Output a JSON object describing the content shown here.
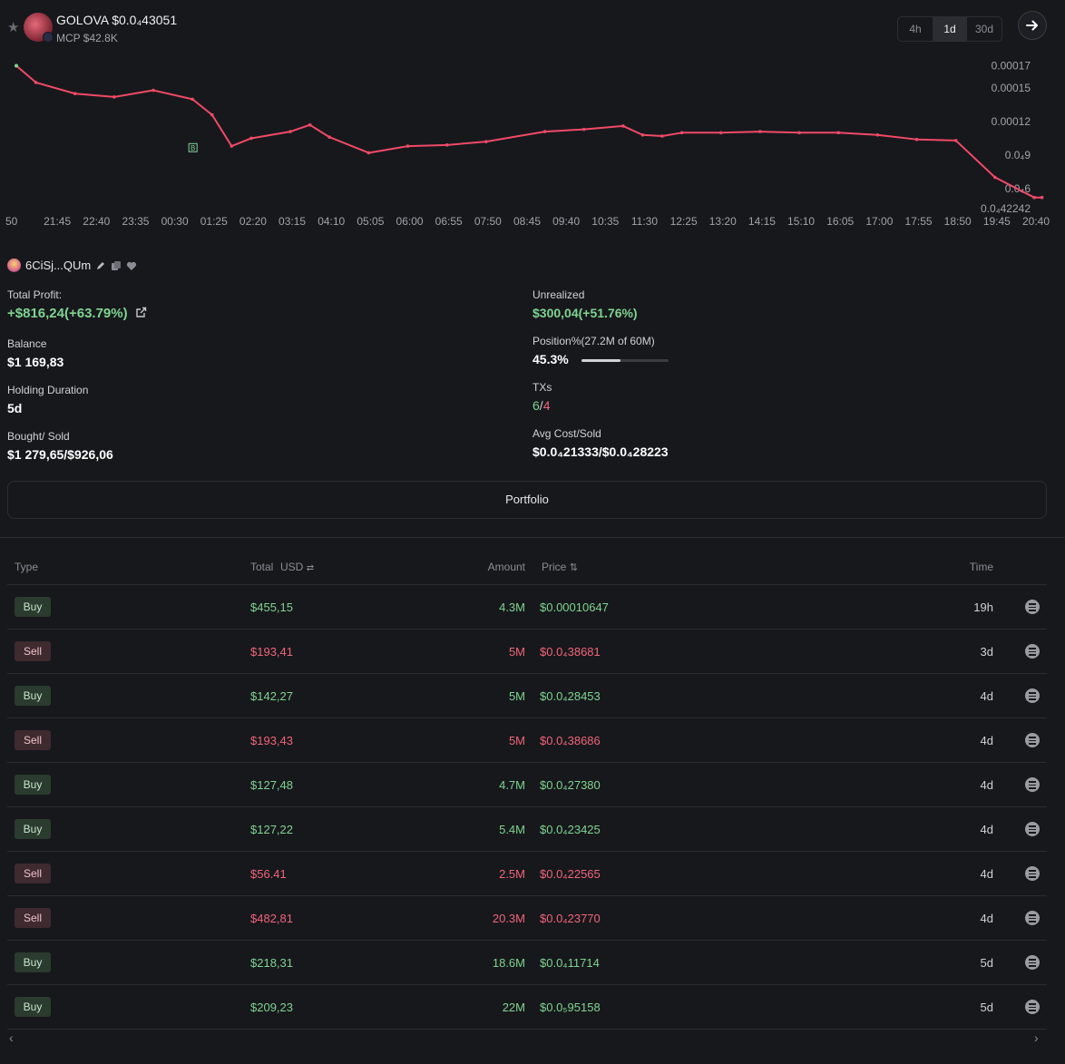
{
  "header": {
    "token_name": "GOLOVA",
    "price": "$0.0₄43051",
    "mcp": "MCP $42.8K",
    "timeframes": [
      "4h",
      "1d",
      "30d"
    ],
    "active_timeframe": "1d"
  },
  "chart_data": {
    "type": "line",
    "x_ticks": [
      "50",
      "21:45",
      "22:40",
      "23:35",
      "00:30",
      "01:25",
      "02:20",
      "03:15",
      "04:10",
      "05:05",
      "06:00",
      "06:55",
      "07:50",
      "08:45",
      "09:40",
      "10:35",
      "11:30",
      "12:25",
      "13:20",
      "14:15",
      "15:10",
      "16:05",
      "17:00",
      "17:55",
      "18:50",
      "19:45",
      "20:40"
    ],
    "y_ticks": [
      "0.00017",
      "0.00015",
      "0.00012",
      "0.0₄9",
      "0.0₄6",
      "0.0₄42242"
    ],
    "y_values": [
      0.00017,
      0.00015,
      0.00012,
      9e-05,
      6e-05,
      4.22e-05
    ],
    "ylim": [
      4.2e-05,
      0.000172
    ],
    "series": [
      {
        "color": "#f04a67",
        "x": [
          0,
          0.5,
          1.5,
          2.5,
          3.5,
          4.5,
          5.0,
          5.5,
          6.0,
          7.0,
          7.5,
          8.0,
          9.0,
          10.0,
          11.0,
          12.0,
          13.5,
          14.5,
          15.5,
          16.0,
          16.5,
          17.0,
          18.0,
          19.0,
          20.0,
          21.0,
          22.0,
          23.0,
          24.0,
          25.0,
          26.0,
          26.2
        ],
        "y": [
          0.00017,
          0.000155,
          0.000145,
          0.000142,
          0.000148,
          0.00014,
          0.000126,
          9.8e-05,
          0.000105,
          0.000111,
          0.000117,
          0.000106,
          9.2e-05,
          9.8e-05,
          9.9e-05,
          0.000102,
          0.000111,
          0.000113,
          0.000116,
          0.000108,
          0.000107,
          0.00011,
          0.00011,
          0.000111,
          0.00011,
          0.00011,
          0.000108,
          0.000104,
          0.000103,
          7e-05,
          5.2e-05,
          5.2e-05
        ]
      }
    ],
    "markers": [
      {
        "label": "B",
        "x": 4.5,
        "y": 9.7e-05
      }
    ]
  },
  "wallet": {
    "address": "6CiSj...QUm"
  },
  "stats": {
    "total_profit_label": "Total Profit:",
    "total_profit_value": "+$816,24(+63.79%)",
    "unrealized_label": "Unrealized",
    "unrealized_value": "$300,04(+51.76%)",
    "balance_label": "Balance",
    "balance_value": "$1 169,83",
    "position_label": "Position%(27.2M of 60M)",
    "position_value": "45.3%",
    "position_fraction": 0.453,
    "holding_label": "Holding Duration",
    "holding_value": "5d",
    "txs_label": "TXs",
    "txs_buys": "6",
    "txs_sep": "/",
    "txs_sells": "4",
    "bought_label": "Bought/ Sold",
    "bought_value": "$1 279,65/$926,06",
    "avg_label": "Avg Cost/Sold",
    "avg_value": "$0.0₄21333/$0.0₄28223"
  },
  "portfolio_label": "Portfolio",
  "table": {
    "headers": {
      "type": "Type",
      "total": "Total",
      "usd": "USD",
      "amount": "Amount",
      "price": "Price",
      "time": "Time"
    },
    "rows": [
      {
        "type": "Buy",
        "total": "$455,15",
        "amount": "4.3M",
        "price": "$0.00010647",
        "time": "19h"
      },
      {
        "type": "Sell",
        "total": "$193,41",
        "amount": "5M",
        "price": "$0.0₄38681",
        "time": "3d"
      },
      {
        "type": "Buy",
        "total": "$142,27",
        "amount": "5M",
        "price": "$0.0₄28453",
        "time": "4d"
      },
      {
        "type": "Sell",
        "total": "$193,43",
        "amount": "5M",
        "price": "$0.0₄38686",
        "time": "4d"
      },
      {
        "type": "Buy",
        "total": "$127,48",
        "amount": "4.7M",
        "price": "$0.0₄27380",
        "time": "4d"
      },
      {
        "type": "Buy",
        "total": "$127,22",
        "amount": "5.4M",
        "price": "$0.0₄23425",
        "time": "4d"
      },
      {
        "type": "Sell",
        "total": "$56.41",
        "amount": "2.5M",
        "price": "$0.0₄22565",
        "time": "4d"
      },
      {
        "type": "Sell",
        "total": "$482,81",
        "amount": "20.3M",
        "price": "$0.0₄23770",
        "time": "4d"
      },
      {
        "type": "Buy",
        "total": "$218,31",
        "amount": "18.6M",
        "price": "$0.0₄11714",
        "time": "5d"
      },
      {
        "type": "Buy",
        "total": "$209,23",
        "amount": "22M",
        "price": "$0.0₅95158",
        "time": "5d"
      }
    ]
  },
  "colors": {
    "buy": "#7fd491",
    "sell": "#f0657a",
    "line": "#f04a67"
  }
}
